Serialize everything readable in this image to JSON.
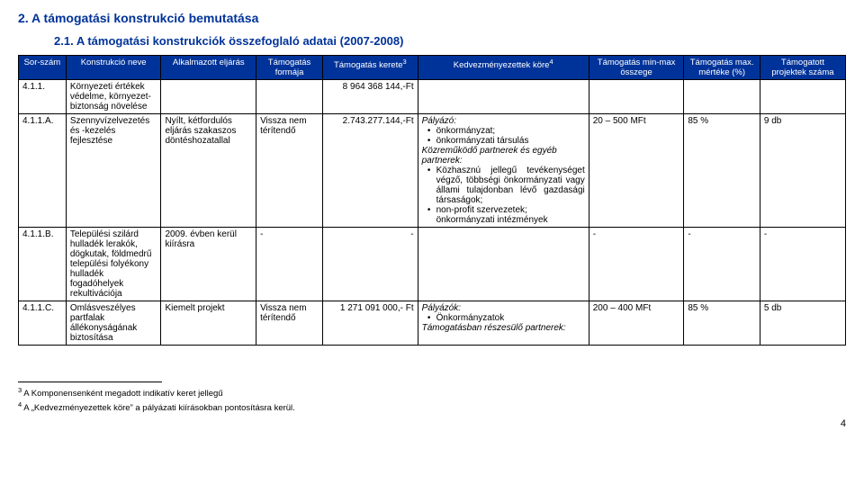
{
  "heading_main": "2. A támogatási konstrukció bemutatása",
  "heading_sub": "2.1.  A támogatási konstrukciók összefoglaló adatai (2007-2008)",
  "columns": {
    "c1": "Sor-szám",
    "c2": "Konstrukció neve",
    "c3": "Alkalmazott eljárás",
    "c4": "Támogatás formája",
    "c5_a": "Támogatás kerete",
    "c5_b": "3",
    "c6_a": "Kedvezményezettek köre",
    "c6_b": "4",
    "c7": "Támogatás min-max összege",
    "c8": "Támogatás max. mértéke (%)",
    "c9": "Támogatott projektek száma"
  },
  "rows": {
    "r1": {
      "sor": "4.1.1.",
      "nev": "Környezeti értékek védelme, környezet-biztonság növelése",
      "keret": "8 964 368 144,-Ft"
    },
    "r2": {
      "sor": "4.1.1.A.",
      "nev": "Szennyvízelvezetés és -kezelés fejlesztése",
      "elj": "Nyílt, kétfordulós eljárás szakaszos döntéshozatallal",
      "form": "Vissza nem térítendő",
      "keret": "2.743.277.144,-Ft",
      "kedv_head": "Pályázó:",
      "kedv_b1": "önkormányzat;",
      "kedv_b2": "önkormányzati társulás",
      "kedv_sub_it": "Közreműködő partnerek és egyéb partnerek:",
      "kedv_b3": "Közhasznú jellegű tevékenységet végző, többségi önkormányzati vagy állami tulajdonban lévő gazdasági társaságok;",
      "kedv_b4": "non-profit szervezetek; önkormányzati intézmények",
      "min": "20 – 500 MFt",
      "mert": "85 %",
      "proj": "9 db"
    },
    "r3": {
      "sor": "4.1.1.B.",
      "nev": "Települési szilárd hulladék lerakók, dögkutak, földmedrű települési folyékony hulladék fogadóhelyek rekultivációja",
      "elj": "2009. évben kerül kiírásra",
      "form": "-",
      "keret": "-",
      "kedv": "",
      "min": "-",
      "mert": "-",
      "proj": "-"
    },
    "r4": {
      "sor": "4.1.1.C.",
      "nev": "Omlásveszélyes partfalak állékonyságának biztosítása",
      "elj": "Kiemelt projekt",
      "form": "Vissza nem térítendő",
      "keret": "1 271 091 000,- Ft",
      "kedv_head": "Pályázók:",
      "kedv_b1": "Önkormányzatok",
      "kedv_sub_it": "Támogatásban részesülő partnerek:",
      "min": "200 – 400 MFt",
      "mert": "85 %",
      "proj": "5 db"
    }
  },
  "footnotes": {
    "f3_sup": "3",
    "f3_txt": " A Komponensenként megadott indikatív keret jellegű",
    "f4_sup": "4",
    "f4_txt": " A „Kedvezményezettek köre” a pályázati kiírásokban pontosításra kerül."
  },
  "pagenum": "4"
}
